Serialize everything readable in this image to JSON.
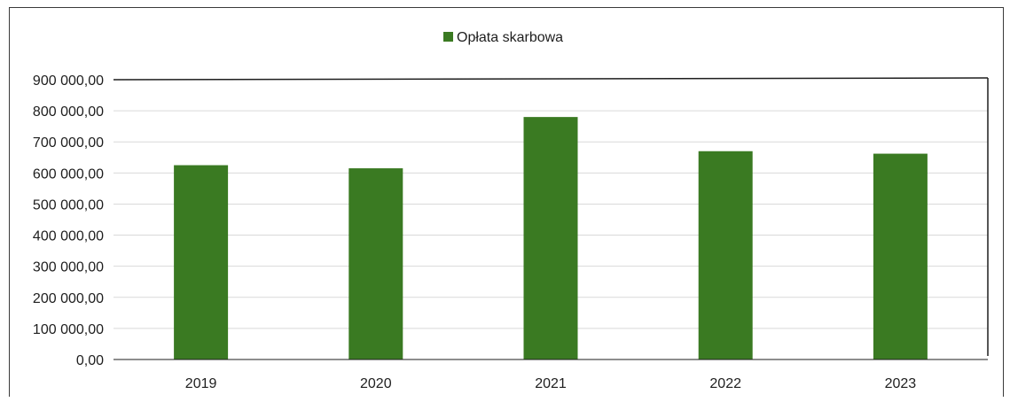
{
  "chart_data": {
    "type": "bar",
    "categories": [
      "2019",
      "2020",
      "2021",
      "2022",
      "2023"
    ],
    "series": [
      {
        "name": "Opłata skarbowa",
        "values": [
          625000,
          615000,
          780000,
          670000,
          662000
        ]
      }
    ],
    "title": "",
    "xlabel": "",
    "ylabel": "",
    "ylim": [
      0,
      900000
    ],
    "y_ticks": [
      0,
      100000,
      200000,
      300000,
      400000,
      500000,
      600000,
      700000,
      800000,
      900000
    ],
    "y_tick_labels": [
      "0,00",
      "100 000,00",
      "200 000,00",
      "300 000,00",
      "400 000,00",
      "500 000,00",
      "600 000,00",
      "700 000,00",
      "800 000,00",
      "900 000,00"
    ],
    "grid": true,
    "legend_position": "top",
    "colors": {
      "bar": "#3a7a22",
      "grid": "#d9d9d9",
      "plot_border": "#1e1e1e"
    }
  }
}
